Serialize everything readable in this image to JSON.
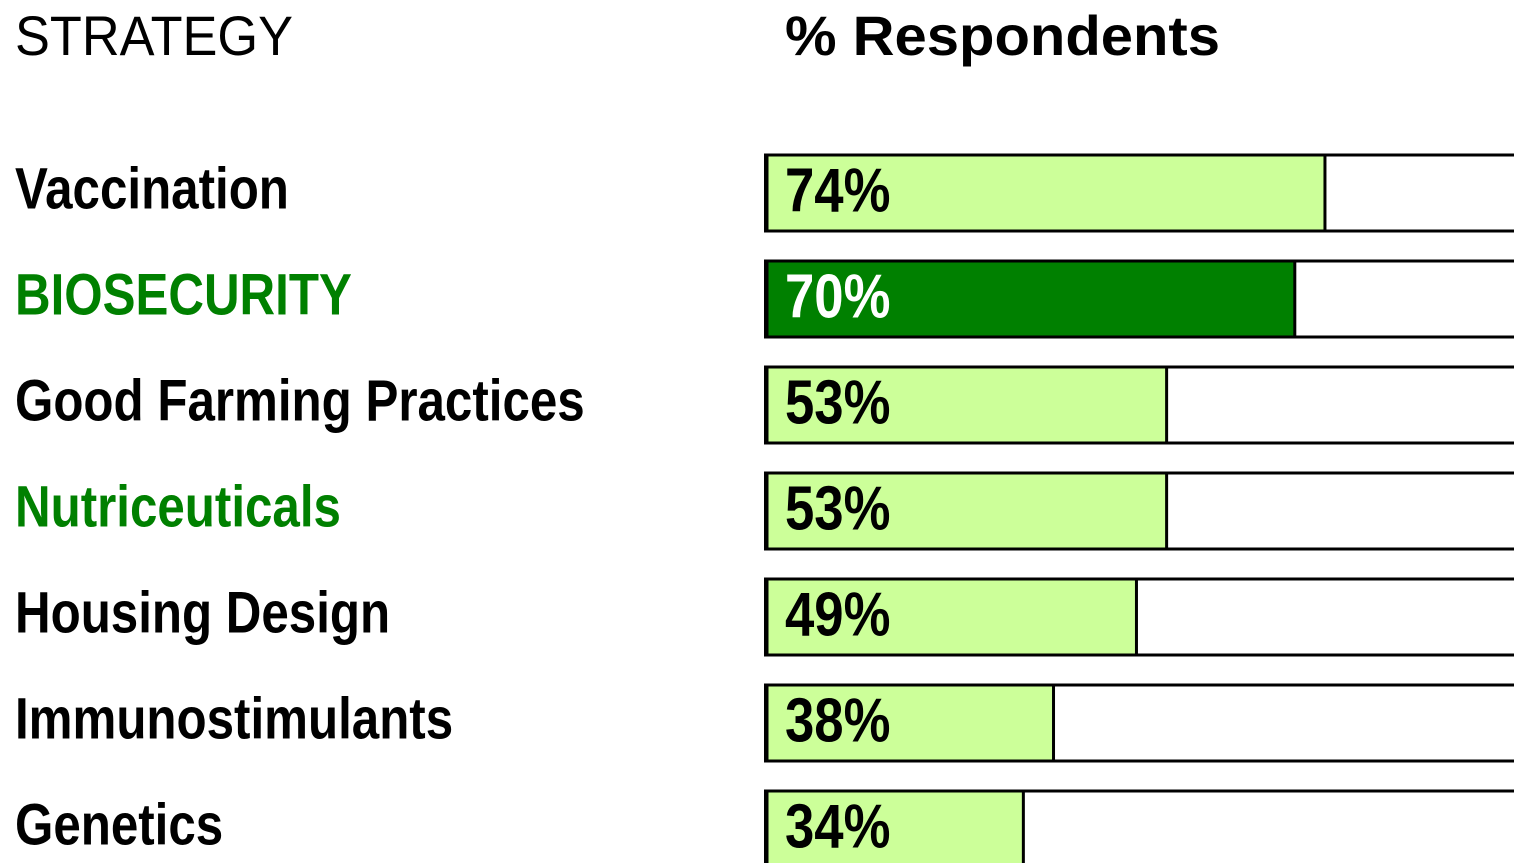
{
  "chart_data": {
    "type": "bar",
    "orientation": "horizontal",
    "category_header": "STRATEGY",
    "value_header": "% Respondents",
    "categories": [
      "Vaccination",
      "BIOSECURITY",
      "Good Farming Practices",
      "Nutriceuticals",
      "Housing Design",
      "Immunostimulants",
      "Genetics"
    ],
    "values": [
      74,
      70,
      53,
      53,
      49,
      38,
      34
    ],
    "value_labels": [
      "74%",
      "70%",
      "53%",
      "53%",
      "49%",
      "38%",
      "34%"
    ],
    "colors": [
      "#ccff99",
      "#008000",
      "#ccff99",
      "#ccff99",
      "#ccff99",
      "#ccff99",
      "#ccff99"
    ],
    "label_colors": [
      "#000000",
      "#008000",
      "#000000",
      "#008000",
      "#000000",
      "#000000",
      "#000000"
    ],
    "value_label_colors": [
      "#000000",
      "#ffffff",
      "#000000",
      "#000000",
      "#000000",
      "#000000",
      "#000000"
    ],
    "xlim": [
      0,
      100
    ]
  }
}
